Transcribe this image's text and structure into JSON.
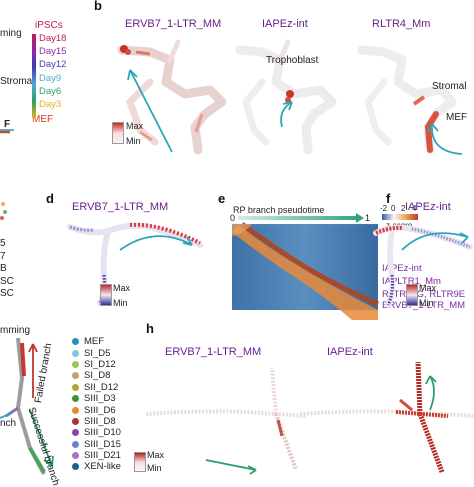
{
  "panels": {
    "b": {
      "label": "b",
      "titles": [
        "ERVB7_1-LTR_MM",
        "IAPEz-int",
        "RLTR4_Mm"
      ],
      "annotations": [
        "Trophoblast",
        "Stromal",
        "MEF"
      ],
      "scale": {
        "max": "Max",
        "min": "Min"
      }
    },
    "a_partial": {
      "text_ming": "ming",
      "text_stromal": "Stromal",
      "text_f": "F",
      "legend_title": "iPSCs",
      "legend": [
        {
          "label": "Day18",
          "color": "#c2185b"
        },
        {
          "label": "Day15",
          "color": "#8e24aa"
        },
        {
          "label": "Day12",
          "color": "#3f3faf"
        },
        {
          "label": "Day9",
          "color": "#4fa9d6"
        },
        {
          "label": "Day6",
          "color": "#2e9e6b"
        },
        {
          "label": "Day3",
          "color": "#e0b020"
        },
        {
          "label": "MEF",
          "color": "#d83a22"
        }
      ]
    },
    "c_partial": {
      "legend": [
        "5",
        "7",
        "B",
        "SC",
        "SC"
      ]
    },
    "d": {
      "label": "d",
      "title": "ERVB7_1-LTR_MM",
      "scale": {
        "max": "Max",
        "min": "Min"
      }
    },
    "e": {
      "label": "e",
      "axis_title": "RP branch pseudotime",
      "axis_start": "0",
      "axis_end": "1",
      "colorbar_ticks": [
        "-2",
        "0",
        "2",
        "4"
      ],
      "colorbar_label": "z-score",
      "te_labels": [
        "IAPEz-int",
        "IAPLTR1_Mm",
        "RLTR13G, RLTR9E",
        "ERVB7_1-LTR_MM"
      ]
    },
    "f": {
      "label": "f",
      "title": "IAPEz-int",
      "scale": {
        "max": "Max",
        "min": "Min"
      }
    },
    "g_partial": {
      "text_mming": "mming",
      "failed": "Failed branch",
      "successful": "Successful branch",
      "nch": "nch",
      "legend": [
        {
          "label": "MEF",
          "color": "#2a8fb5"
        },
        {
          "label": "SI_D5",
          "color": "#7fc8d6"
        },
        {
          "label": "SI_D12",
          "color": "#9cc25a"
        },
        {
          "label": "SI_D8",
          "color": "#c7a16c"
        },
        {
          "label": "SII_D12",
          "color": "#b5a33a"
        },
        {
          "label": "SIII_D3",
          "color": "#3c8f3c"
        },
        {
          "label": "SIII_D6",
          "color": "#e38b2c"
        },
        {
          "label": "SIII_D8",
          "color": "#a33a2a"
        },
        {
          "label": "SIII_D10",
          "color": "#8e3fb0"
        },
        {
          "label": "SIII_D15",
          "color": "#6d7fcf"
        },
        {
          "label": "SIII_D21",
          "color": "#b06cc8"
        },
        {
          "label": "XEN-like",
          "color": "#1f5f8f"
        }
      ]
    },
    "h": {
      "label": "h",
      "titles": [
        "ERVB7_1-LTR_MM",
        "IAPEz-int"
      ],
      "scale": {
        "max": "Max",
        "min": "Min"
      }
    }
  }
}
